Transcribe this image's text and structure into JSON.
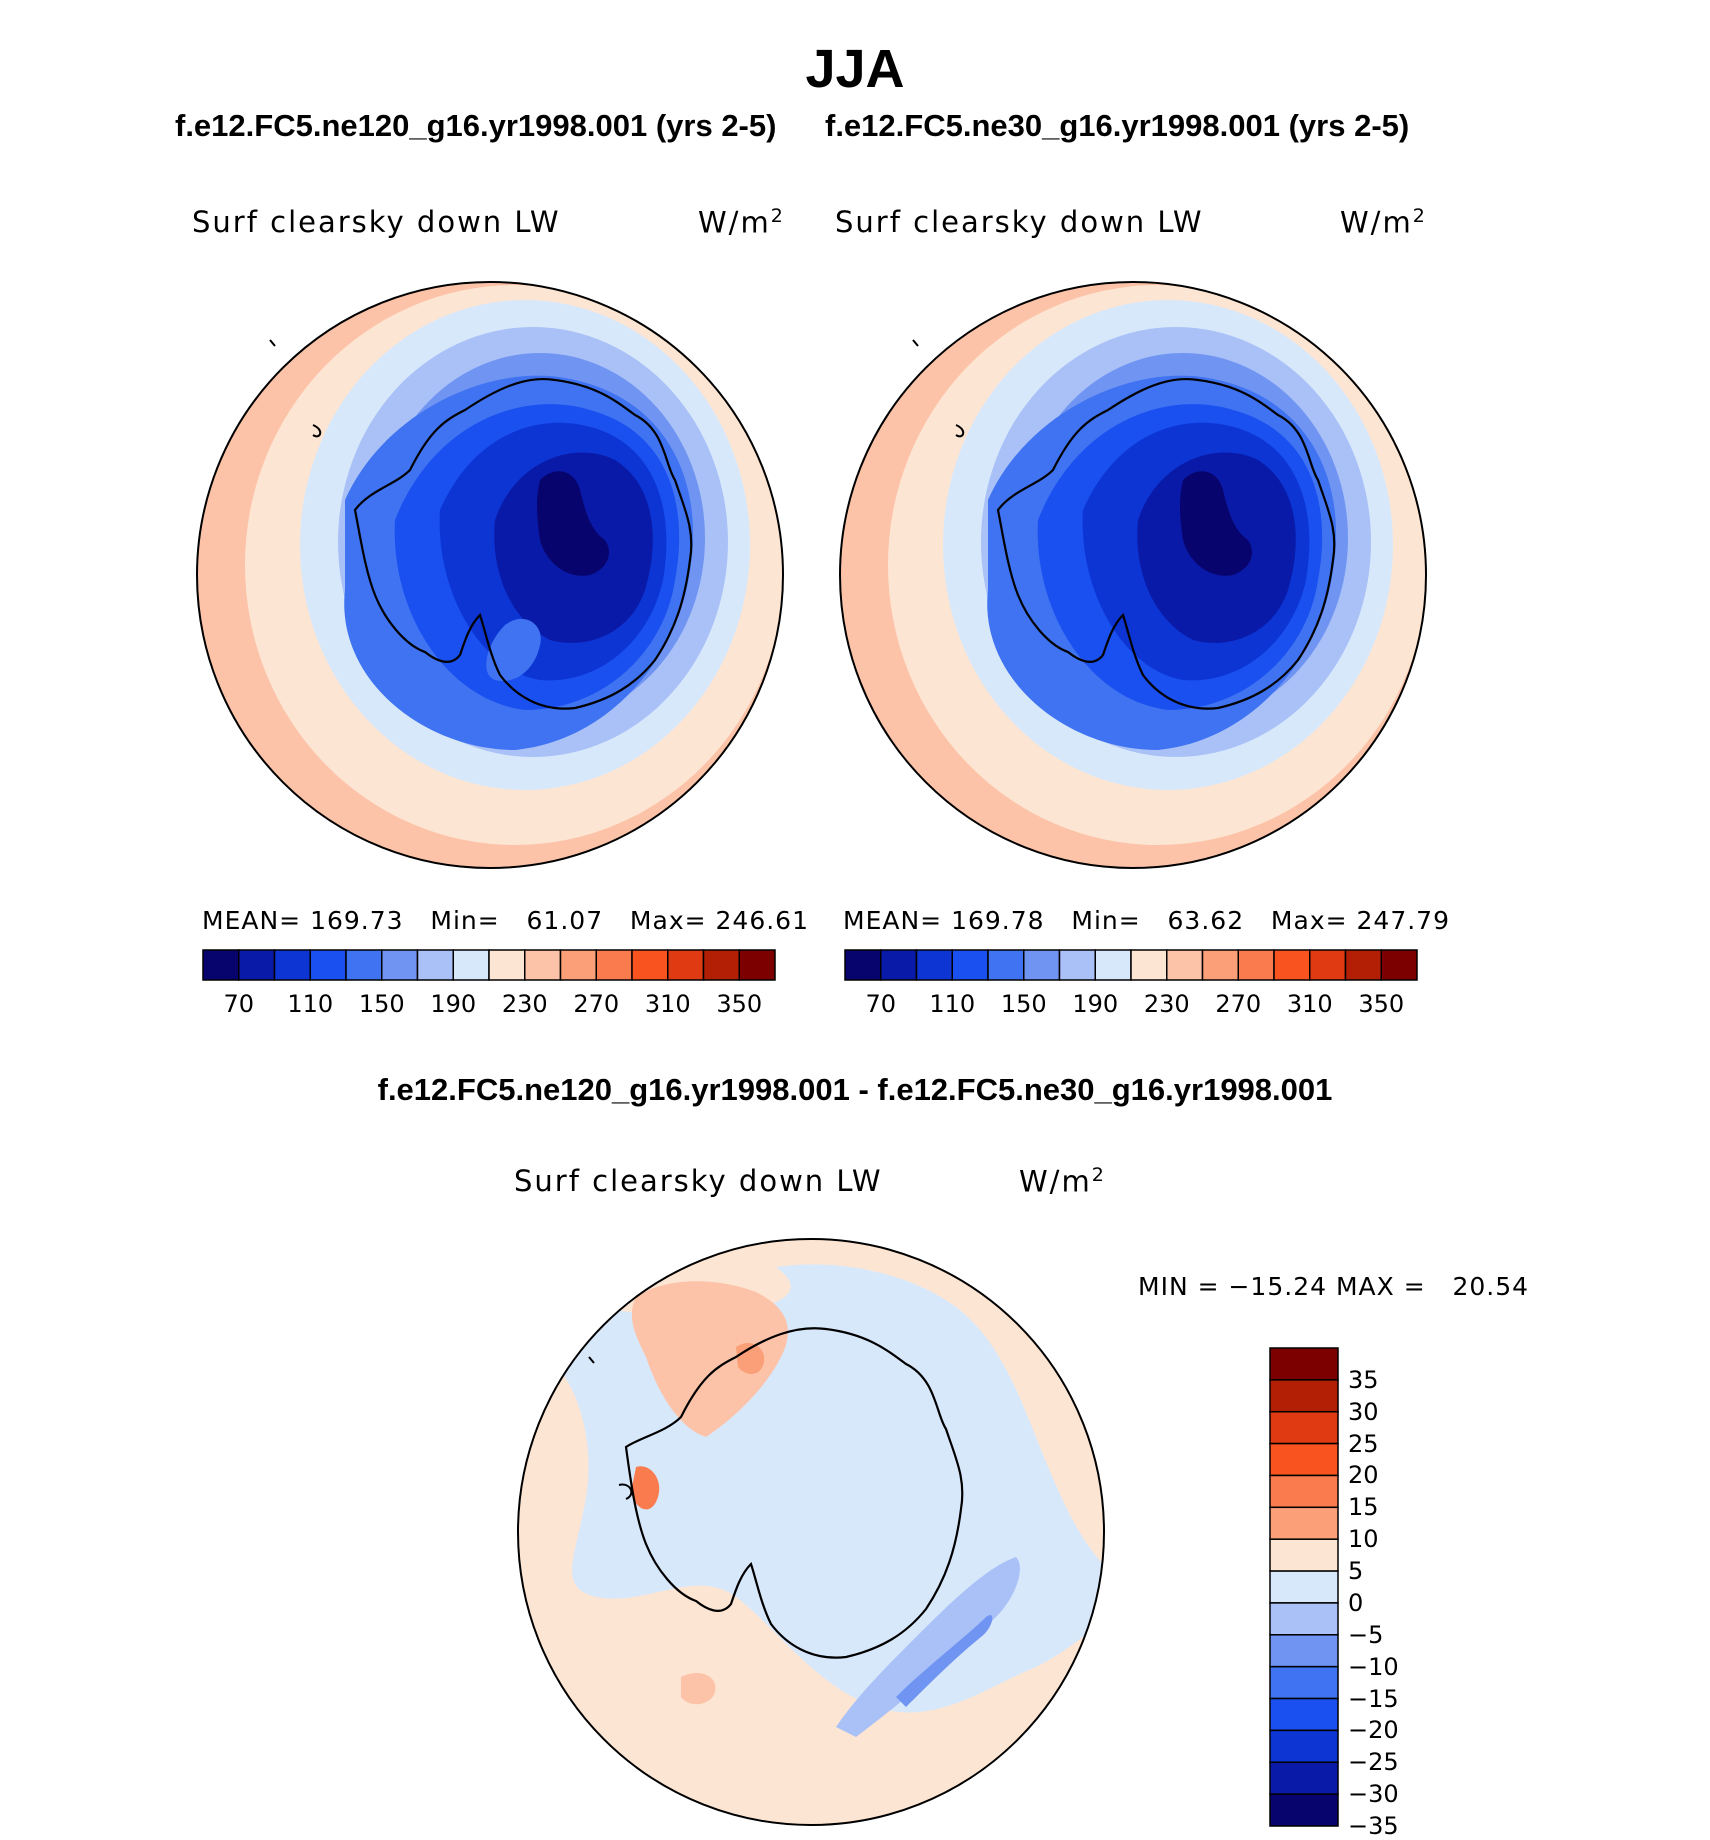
{
  "title": "JJA",
  "case1_title": "f.e12.FC5.ne120_g16.yr1998.001 (yrs 2-5)",
  "case2_title": "f.e12.FC5.ne30_g16.yr1998.001 (yrs 2-5)",
  "diff_title": "f.e12.FC5.ne120_g16.yr1998.001 - f.e12.FC5.ne30_g16.yr1998.001",
  "panels": [
    {
      "variable": "Surf clearsky down LW",
      "units": "W/m",
      "units_sup": "2",
      "stats": "MEAN= 169.73   Min=   61.07   Max= 246.61"
    },
    {
      "variable": "Surf clearsky down LW",
      "units": "W/m",
      "units_sup": "2",
      "stats": "MEAN= 169.78   Min=   63.62   Max= 247.79"
    }
  ],
  "diff_panel": {
    "variable": "Surf clearsky down LW",
    "units": "W/m",
    "units_sup": "2",
    "stats": "MIN = −15.24 MAX =   20.54"
  },
  "colorbar_abs": {
    "colors": [
      "#08046e",
      "#0a1aa8",
      "#0c35d4",
      "#1a4ff0",
      "#3f73f2",
      "#7094f2",
      "#a9c1f7",
      "#d8e8fb",
      "#fde5d3",
      "#fcc3a8",
      "#fa9f78",
      "#f97b4e",
      "#f9541f",
      "#e03a12",
      "#b31f05",
      "#7d0000"
    ],
    "tick_labels": [
      "70",
      "110",
      "150",
      "190",
      "230",
      "270",
      "310",
      "350"
    ]
  },
  "colorbar_diff": {
    "colors": [
      "#7d0000",
      "#b31f05",
      "#e03a12",
      "#f9541f",
      "#f97b4e",
      "#fa9f78",
      "#fde5d3",
      "#d8e8fb",
      "#a9c1f7",
      "#7094f2",
      "#3f73f2",
      "#1a4ff0",
      "#0c35d4",
      "#0a1aa8",
      "#08046e"
    ],
    "tick_labels": [
      "35",
      "30",
      "25",
      "20",
      "15",
      "10",
      "5",
      "0",
      "−5",
      "−10",
      "−15",
      "−20",
      "−25",
      "−30",
      "−35"
    ]
  }
}
